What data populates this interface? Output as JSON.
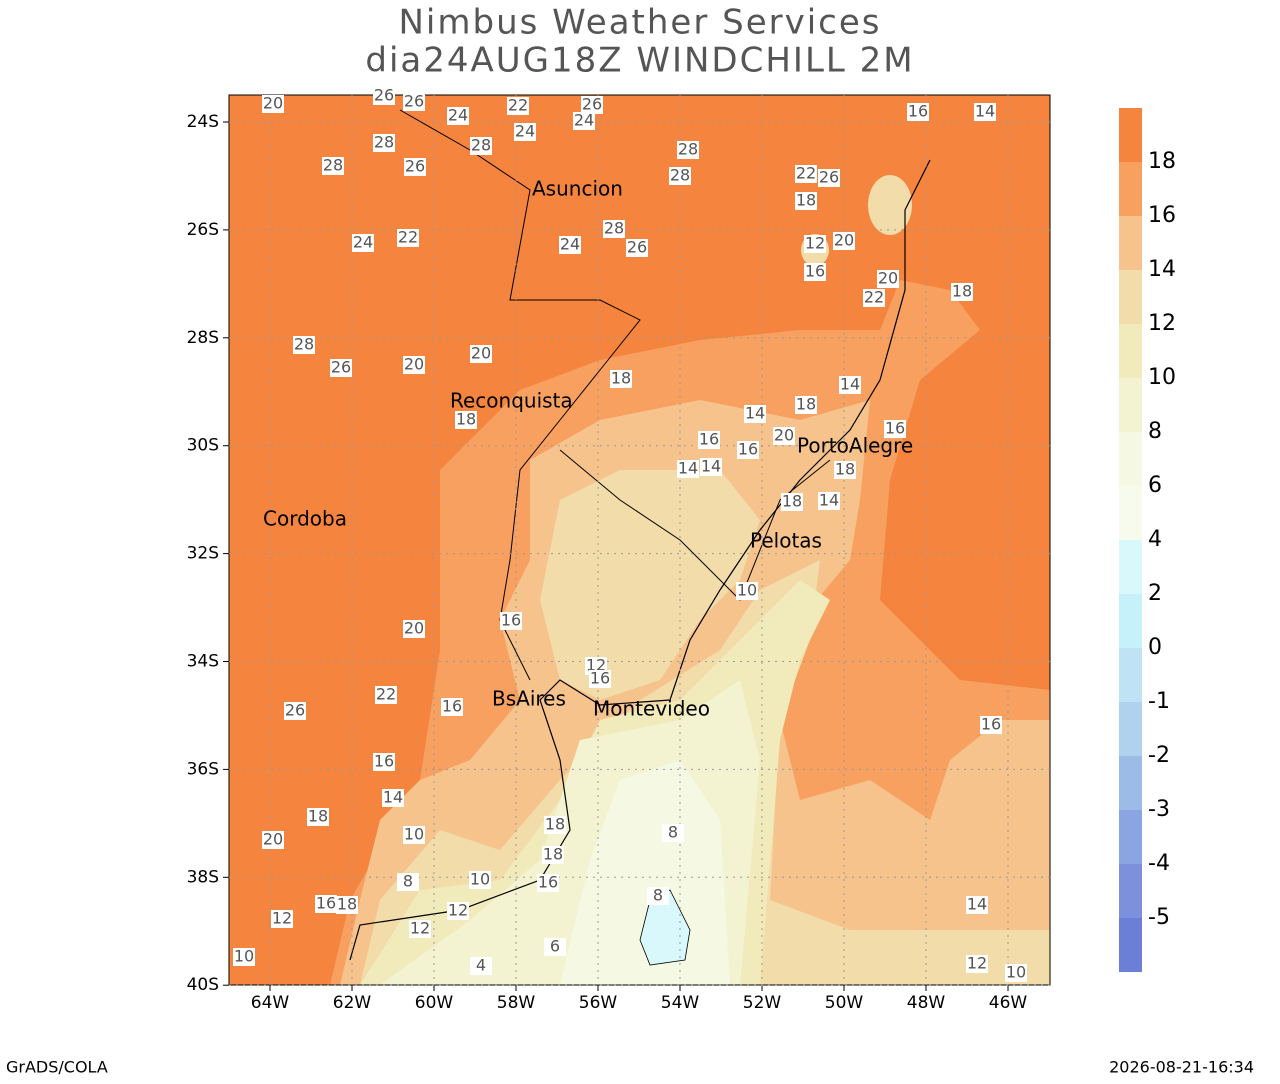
{
  "title": [
    "Nimbus Weather Services",
    "dia24AUG18Z WINDCHILL 2M"
  ],
  "map": {
    "xticks": [
      "64W",
      "62W",
      "60W",
      "58W",
      "56W",
      "54W",
      "52W",
      "50W",
      "48W",
      "46W"
    ],
    "yticks": [
      "24S",
      "26S",
      "28S",
      "30S",
      "32S",
      "34S",
      "36S",
      "38S",
      "40S"
    ],
    "cities": [
      "Asuncion",
      "Reconquista",
      "Cordoba",
      "PortoAlegre",
      "Pelotas",
      "BsAires",
      "Montevideo"
    ],
    "contour_labels": [
      20,
      26,
      26,
      22,
      26,
      24,
      16,
      14,
      28,
      28,
      24,
      24,
      28,
      26,
      28,
      28,
      22,
      26,
      18,
      12,
      16,
      20,
      24,
      22,
      24,
      28,
      26,
      20,
      22,
      18,
      28,
      26,
      20,
      20,
      18,
      18,
      14,
      14,
      16,
      16,
      20,
      18,
      18,
      14,
      14,
      16,
      18,
      14,
      16,
      12,
      16,
      10,
      10,
      12,
      8,
      8,
      6,
      4,
      10,
      8,
      10,
      12,
      16,
      14,
      12,
      18,
      20,
      16,
      18,
      14,
      12,
      10,
      22,
      26,
      20,
      16,
      16,
      18,
      18,
      16
    ]
  },
  "colorbar": {
    "labels": [
      18,
      16,
      14,
      12,
      10,
      8,
      6,
      4,
      2,
      0,
      -1,
      -2,
      -3,
      -4,
      -5
    ],
    "colors": [
      "#f4843e",
      "#f7a060",
      "#f6c38c",
      "#f2dca9",
      "#f1ebbb",
      "#f3f3d2",
      "#f5f8e3",
      "#f6fbee",
      "#d8f8fc",
      "#c6f0fa",
      "#bfe3f4",
      "#b0d2ee",
      "#9dbbe7",
      "#8aa5e1",
      "#7c90dc",
      "#6b7fd6"
    ]
  },
  "footer": {
    "left": "GrADS/COLA",
    "right": "2026-08-21-16:34"
  }
}
